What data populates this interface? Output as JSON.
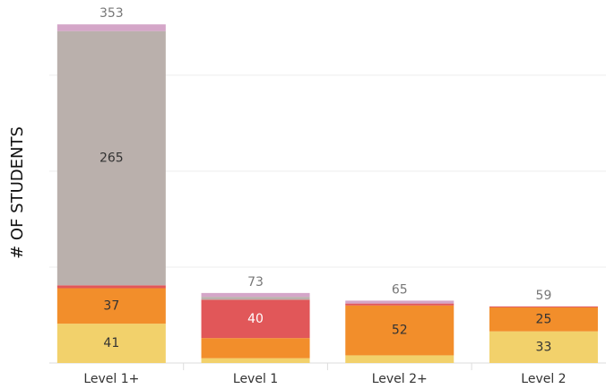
{
  "chart_data": {
    "type": "stacked_bar",
    "y_label": "# OF STUDENTS",
    "categories": [
      "Level 1+",
      "Level 1",
      "Level 2+",
      "Level 2"
    ],
    "series": [
      {
        "color": "#f2d16b",
        "values": [
          41,
          5,
          8,
          33
        ]
      },
      {
        "color": "#f28e2b",
        "values": [
          37,
          21,
          52,
          25
        ]
      },
      {
        "color": "#e15759",
        "values": [
          3,
          40,
          2,
          1
        ]
      },
      {
        "color": "#bab0ac",
        "values": [
          265,
          3,
          0,
          0
        ]
      },
      {
        "color": "#d4a6c8",
        "values": [
          7,
          4,
          3,
          0
        ]
      }
    ],
    "totals": [
      353,
      73,
      65,
      59
    ],
    "ylim": [
      0,
      370
    ],
    "yticks": [
      0,
      100,
      200,
      300
    ],
    "grid": true
  }
}
